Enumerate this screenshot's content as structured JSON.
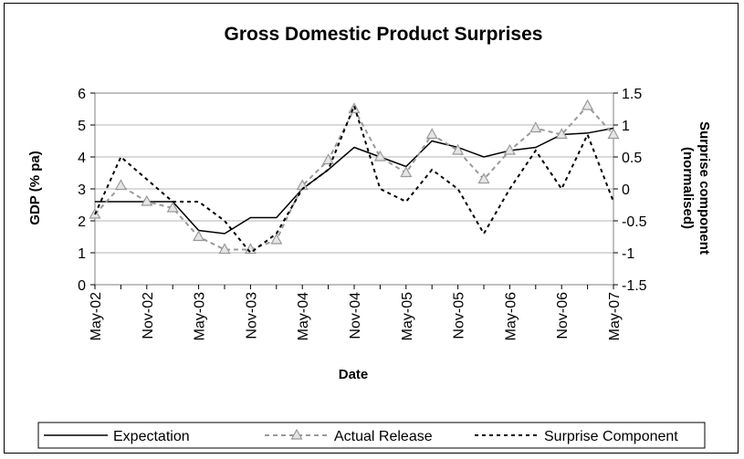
{
  "chart_data": {
    "type": "line",
    "title": "Gross Domestic Product Surprises",
    "xlabel": "Date",
    "ylabel": "GDP (% pa)",
    "y2label_lines": [
      "Surprise component",
      "(normalised)"
    ],
    "ylim": [
      0,
      6
    ],
    "y2lim": [
      -1.5,
      1.5
    ],
    "yticks": [
      "0",
      "1",
      "2",
      "3",
      "4",
      "5",
      "6"
    ],
    "y2ticks": [
      "-1.5",
      "-1",
      "-0.5",
      "0",
      "0.5",
      "1",
      "1.5"
    ],
    "xticks": [
      "May-02",
      "Nov-02",
      "May-03",
      "Nov-03",
      "May-04",
      "Nov-04",
      "May-05",
      "Nov-05",
      "May-06",
      "Nov-06",
      "May-07"
    ],
    "x": [
      "May-02",
      "Aug-02",
      "Nov-02",
      "Feb-03",
      "May-03",
      "Aug-03",
      "Nov-03",
      "Feb-04",
      "May-04",
      "Aug-04",
      "Nov-04",
      "Feb-05",
      "May-05",
      "Aug-05",
      "Nov-05",
      "Feb-06",
      "May-06",
      "Aug-06",
      "Nov-06",
      "Feb-07",
      "May-07"
    ],
    "legend_position": "bottom",
    "series": [
      {
        "name": "Expectation",
        "axis": "left",
        "style": "solid",
        "color": "#000000",
        "values": [
          2.6,
          2.6,
          2.6,
          2.6,
          1.7,
          1.6,
          2.1,
          2.1,
          3.0,
          3.6,
          4.3,
          4.0,
          3.7,
          4.5,
          4.3,
          4.0,
          4.2,
          4.3,
          4.7,
          4.75,
          4.9
        ]
      },
      {
        "name": "Actual Release",
        "axis": "left",
        "style": "dashed",
        "color": "#999999",
        "marker": "triangle",
        "values": [
          2.2,
          3.1,
          2.6,
          2.4,
          1.5,
          1.1,
          1.1,
          1.4,
          3.1,
          3.9,
          5.5,
          4.0,
          3.5,
          4.7,
          4.2,
          3.3,
          4.2,
          4.9,
          4.7,
          5.6,
          4.7
        ]
      },
      {
        "name": "Surprise Component",
        "axis": "right",
        "style": "dotted",
        "color": "#000000",
        "values": [
          -0.4,
          0.5,
          0.15,
          -0.2,
          -0.2,
          -0.5,
          -1.0,
          -0.7,
          0.0,
          0.3,
          1.3,
          0.0,
          -0.2,
          0.3,
          0.0,
          -0.7,
          0.0,
          0.6,
          0.0,
          0.85,
          -0.2
        ]
      }
    ]
  }
}
